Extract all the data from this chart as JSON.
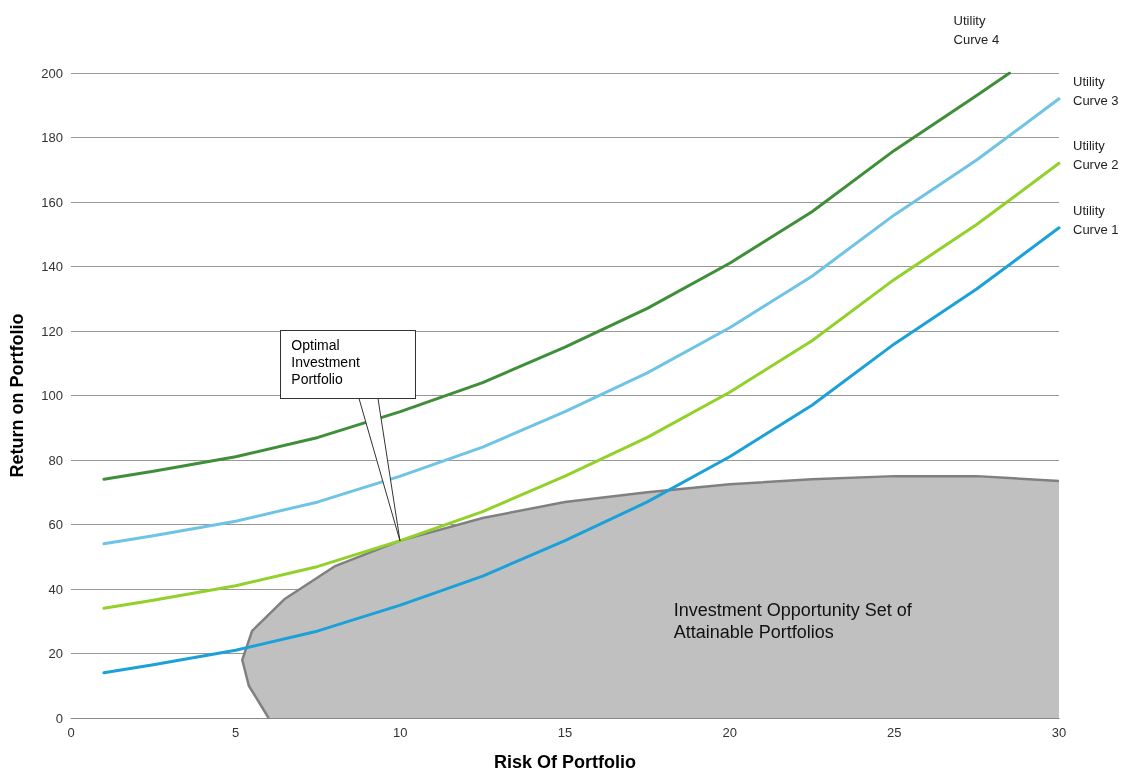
{
  "chart_data": {
    "type": "line",
    "xlabel": "Risk Of Portfolio",
    "ylabel": "Return on Portfolio",
    "xlim": [
      0,
      30
    ],
    "xticks": [
      0,
      5,
      10,
      15,
      20,
      25,
      30
    ],
    "ylim": [
      0,
      200
    ],
    "yticks": [
      0,
      20,
      40,
      60,
      80,
      100,
      120,
      140,
      160,
      180,
      200
    ],
    "grid": "y",
    "legend": false,
    "marker": "none",
    "line_style": "solid",
    "annotations": [
      {
        "text": "Optimal Investment Portfolio",
        "x": 10,
        "y": 55
      }
    ],
    "series": [
      {
        "type": "area",
        "name": "Investment Opportunity Set of Attainable Portfolios",
        "color": "#c0c0c0",
        "x": [
          6,
          5.4,
          5.2,
          5.5,
          6.5,
          8,
          10,
          12.5,
          15,
          17.5,
          20,
          22.5,
          25,
          27.5,
          30
        ],
        "values": [
          0,
          10,
          18,
          27,
          37,
          47,
          55,
          62,
          67,
          70,
          72.5,
          74,
          75,
          75,
          73.5
        ]
      },
      {
        "name": "Utility Curve 1",
        "color": "#1ba1d8",
        "x": [
          1,
          2.5,
          5,
          7.5,
          10,
          12.5,
          15,
          17.5,
          20,
          22.5,
          25,
          27.5,
          30
        ],
        "values": [
          14,
          16.5,
          21,
          27,
          35,
          44,
          55,
          67,
          81,
          97,
          116,
          133,
          152
        ]
      },
      {
        "name": "Utility Curve 2",
        "color": "#92d12a",
        "x": [
          1,
          2.5,
          5,
          7.5,
          10,
          12.5,
          15,
          17.5,
          20,
          22.5,
          25,
          27.5,
          30
        ],
        "values": [
          34,
          36.5,
          41,
          47,
          55,
          64,
          75,
          87,
          101,
          117,
          136,
          153,
          172
        ]
      },
      {
        "name": "Utility Curve 3",
        "color": "#6fc4e6",
        "x": [
          1,
          2.5,
          5,
          7.5,
          10,
          12.5,
          15,
          17.5,
          20,
          22.5,
          25,
          27.5,
          30
        ],
        "values": [
          54,
          56.5,
          61,
          67,
          75,
          84,
          95,
          107,
          121,
          137,
          156,
          173,
          192
        ]
      },
      {
        "name": "Utility Curve 4",
        "color": "#3e8e3a",
        "x": [
          1,
          2.5,
          5,
          7.5,
          10,
          12.5,
          15,
          17.5,
          20,
          22.5,
          25,
          27.5,
          28.5
        ],
        "values": [
          74,
          76.5,
          81,
          87,
          95,
          104,
          115,
          127,
          141,
          157,
          176,
          193,
          200
        ]
      }
    ]
  }
}
